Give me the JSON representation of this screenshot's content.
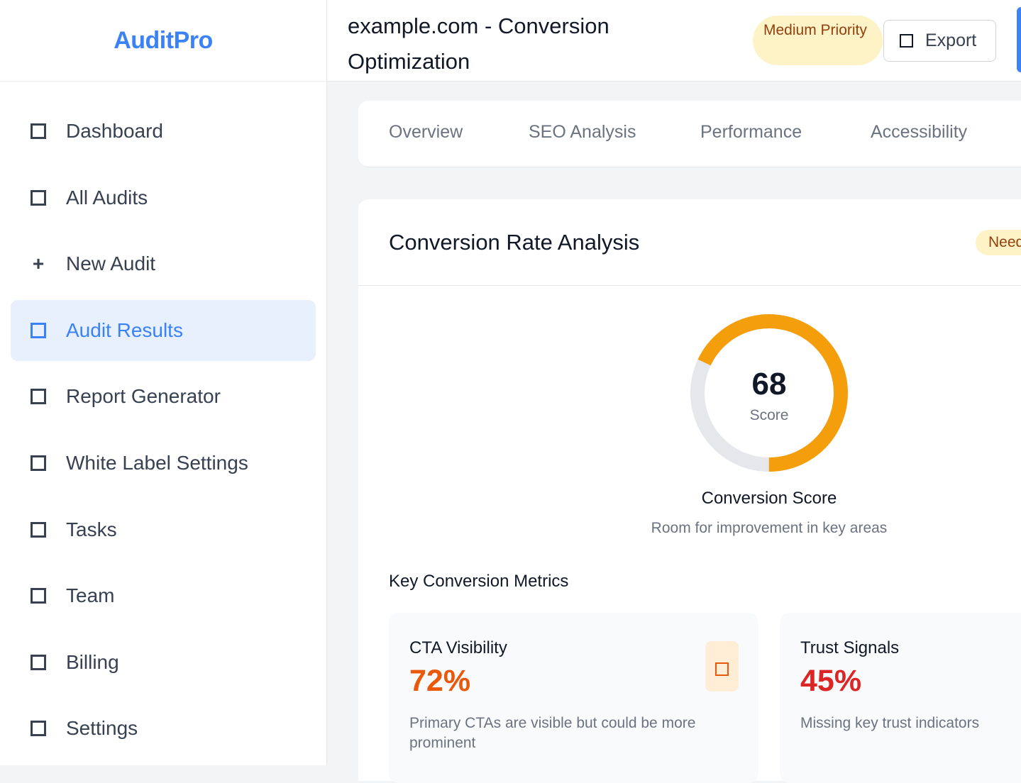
{
  "sidebar": {
    "brand": "AuditPro",
    "items": [
      {
        "label": "Dashboard",
        "icon": "square-icon"
      },
      {
        "label": "All Audits",
        "icon": "square-icon"
      },
      {
        "label": "New Audit",
        "icon": "plus-icon"
      },
      {
        "label": "Audit Results",
        "icon": "square-icon",
        "active": true
      },
      {
        "label": "Report Generator",
        "icon": "square-icon"
      },
      {
        "label": "White Label Settings",
        "icon": "square-icon"
      },
      {
        "label": "Tasks",
        "icon": "square-icon"
      },
      {
        "label": "Team",
        "icon": "square-icon"
      },
      {
        "label": "Billing",
        "icon": "square-icon"
      },
      {
        "label": "Settings",
        "icon": "square-icon"
      }
    ]
  },
  "header": {
    "title": "example.com - Conversion Optimization",
    "priority": "Medium Priority",
    "export_label": "Export"
  },
  "tabs": [
    "Overview",
    "SEO Analysis",
    "Performance",
    "Accessibility"
  ],
  "analysis": {
    "title": "Conversion Rate Analysis",
    "status_badge": "Need",
    "score": {
      "value": "68",
      "fraction": 0.68,
      "label": "Score",
      "title": "Conversion Score",
      "subtitle": "Room for improvement in key areas"
    },
    "metrics_title": "Key Conversion Metrics",
    "metrics": [
      {
        "name": "CTA Visibility",
        "value": "72%",
        "desc": "Primary CTAs are visible but could be more prominent",
        "color": "#ea580c"
      },
      {
        "name": "Trust Signals",
        "value": "45%",
        "desc": "Missing key trust indicators",
        "color": "#dc2626"
      }
    ]
  },
  "colors": {
    "accent": "#3b82f6",
    "gauge": "#f59e0b",
    "track": "#e5e7eb"
  }
}
